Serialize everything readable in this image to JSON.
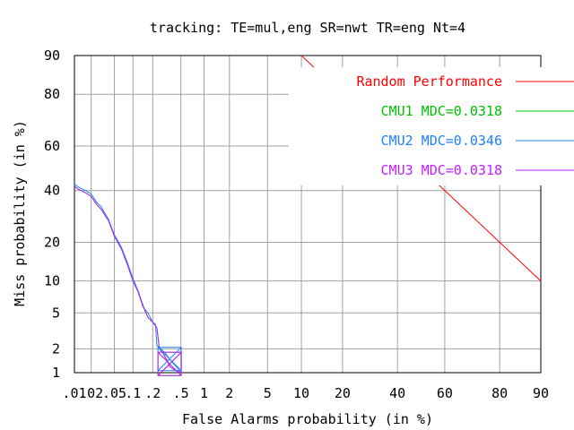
{
  "chart_data": {
    "type": "line",
    "title": "tracking: TE=mul,eng SR=nwt TR=eng Nt=4",
    "xlabel": "False Alarms probability (in %)",
    "ylabel": "Miss probability (in %)",
    "x_scale": "normal-deviate",
    "y_scale": "normal-deviate",
    "xlim": [
      0.01,
      90
    ],
    "ylim": [
      1,
      90
    ],
    "grid": true,
    "legend_position": "top-right",
    "x_ticks": [
      {
        "value": 0.01,
        "label": ".01"
      },
      {
        "value": 0.02,
        "label": ".02"
      },
      {
        "value": 0.05,
        "label": ".05"
      },
      {
        "value": 0.1,
        "label": ".1"
      },
      {
        "value": 0.2,
        "label": ".2"
      },
      {
        "value": 0.5,
        "label": ".5"
      },
      {
        "value": 1,
        "label": "1"
      },
      {
        "value": 2,
        "label": "2"
      },
      {
        "value": 5,
        "label": "5"
      },
      {
        "value": 10,
        "label": "10"
      },
      {
        "value": 20,
        "label": "20"
      },
      {
        "value": 40,
        "label": "40"
      },
      {
        "value": 60,
        "label": "60"
      },
      {
        "value": 80,
        "label": "80"
      },
      {
        "value": 90,
        "label": "90"
      }
    ],
    "y_ticks": [
      {
        "value": 1,
        "label": "1"
      },
      {
        "value": 2,
        "label": "2"
      },
      {
        "value": 5,
        "label": "5"
      },
      {
        "value": 10,
        "label": "10"
      },
      {
        "value": 20,
        "label": "20"
      },
      {
        "value": 40,
        "label": "40"
      },
      {
        "value": 60,
        "label": "60"
      },
      {
        "value": 80,
        "label": "80"
      },
      {
        "value": 90,
        "label": "90"
      }
    ],
    "series": [
      {
        "name": "Random Performance",
        "color": "#ff0000",
        "x": [
          10,
          90
        ],
        "y": [
          90,
          10
        ]
      },
      {
        "name": "CMU1 MDC=0.0318",
        "color": "#00c000",
        "x": [
          0.01,
          0.011,
          0.013,
          0.016,
          0.02,
          0.025,
          0.03,
          0.04,
          0.05,
          0.065,
          0.08,
          0.1,
          0.12,
          0.14,
          0.17,
          0.2,
          0.23,
          0.25,
          0.28,
          0.3,
          0.33,
          0.35,
          0.4,
          0.5
        ],
        "y": [
          42,
          41,
          40,
          39,
          37.5,
          34,
          32,
          27.5,
          22,
          18,
          14,
          10,
          8,
          6,
          4.5,
          4,
          3.5,
          2,
          1.8,
          1.6,
          1.4,
          1.2,
          1.1,
          1
        ]
      },
      {
        "name": "CMU2 MDC=0.0346",
        "color": "#2080ff",
        "x": [
          0.01,
          0.011,
          0.013,
          0.016,
          0.02,
          0.025,
          0.03,
          0.04,
          0.05,
          0.065,
          0.08,
          0.1,
          0.12,
          0.14,
          0.15,
          0.17,
          0.2,
          0.22,
          0.23,
          0.26,
          0.3,
          0.35,
          0.4,
          0.45,
          0.5
        ],
        "y": [
          43,
          42,
          41,
          40,
          38.5,
          35,
          33,
          28,
          22.5,
          18.5,
          14.5,
          10.5,
          8.2,
          6.2,
          5.5,
          5,
          4,
          3.8,
          2.2,
          2,
          1.8,
          1.5,
          1.3,
          1.15,
          1
        ]
      },
      {
        "name": "CMU3 MDC=0.0318",
        "color": "#c020ff",
        "x": [
          0.01,
          0.011,
          0.013,
          0.016,
          0.02,
          0.025,
          0.03,
          0.04,
          0.05,
          0.065,
          0.08,
          0.1,
          0.12,
          0.14,
          0.17,
          0.2,
          0.23,
          0.25,
          0.28,
          0.3,
          0.33,
          0.35,
          0.4,
          0.5
        ],
        "y": [
          42,
          41,
          40,
          39,
          37.5,
          34,
          32,
          27.5,
          22,
          18,
          14,
          10,
          8,
          6,
          4.5,
          4,
          3.5,
          2,
          1.8,
          1.6,
          1.4,
          1.2,
          1.1,
          1
        ]
      }
    ],
    "mdc_markers": [
      {
        "series": "CMU1 MDC=0.0318",
        "x": 0.35,
        "y": 1.3,
        "color": "#00c000"
      },
      {
        "series": "CMU2 MDC=0.0346",
        "x": 0.35,
        "y": 1.5,
        "color": "#2080ff"
      },
      {
        "series": "CMU3 MDC=0.0318",
        "x": 0.35,
        "y": 1.3,
        "color": "#c020ff"
      }
    ]
  }
}
